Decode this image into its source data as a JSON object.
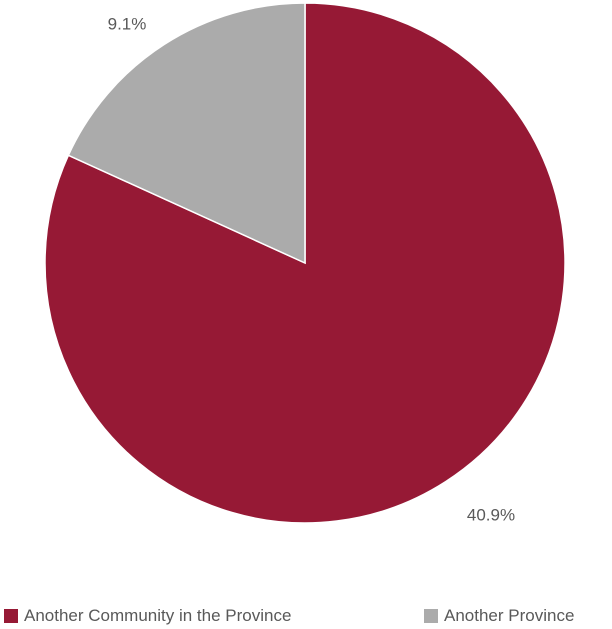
{
  "chart_data": {
    "type": "pie",
    "title": "",
    "slices": [
      {
        "label": "Another Community in the Province",
        "value": 81.8,
        "display_label": "40.9%",
        "color": "#961935"
      },
      {
        "label": "Another Province",
        "value": 18.2,
        "display_label": "9.1%",
        "color": "#ababab"
      }
    ],
    "start_angle_deg": 0,
    "direction": "clockwise",
    "legend": {
      "position": "bottom",
      "entries": [
        "Another Community in the Province",
        "Another Province"
      ]
    }
  },
  "colors": {
    "label_text": "#595959",
    "background": "#ffffff"
  }
}
